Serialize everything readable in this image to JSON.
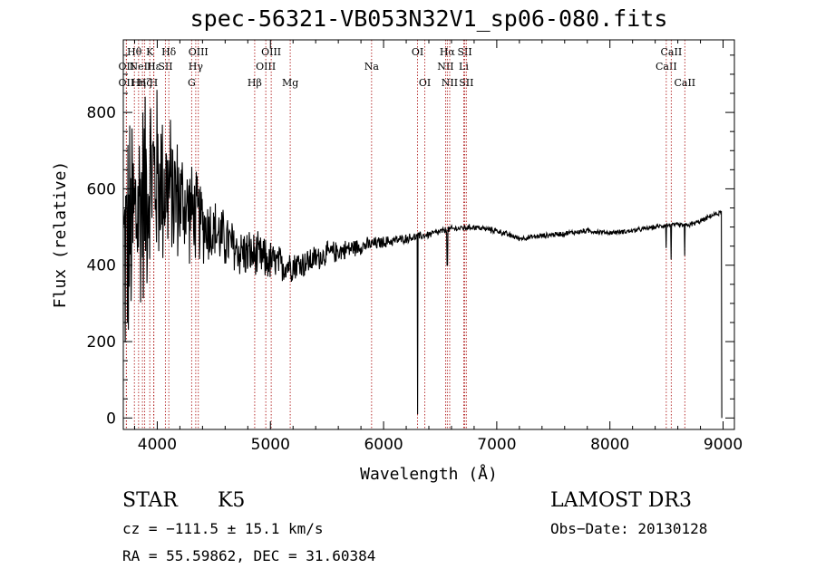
{
  "chart_data": {
    "type": "line",
    "title": "spec-56321-VB053N32V1_sp06-080.fits",
    "xlabel": "Wavelength (Å)",
    "ylabel": "Flux (relative)",
    "xlim": [
      3700,
      9100
    ],
    "ylim": [
      -30,
      990
    ],
    "xticks": [
      4000,
      5000,
      6000,
      7000,
      8000,
      9000
    ],
    "yticks": [
      0,
      200,
      400,
      600,
      800
    ],
    "spectrum_envelope": {
      "wavelength": [
        3700,
        3750,
        3800,
        3850,
        3900,
        3950,
        4000,
        4100,
        4200,
        4300,
        4400,
        4500,
        4700,
        4900,
        5100,
        5300,
        5500,
        5800,
        6000,
        6200,
        6400,
        6600,
        6800,
        7000,
        7200,
        7500,
        7800,
        8000,
        8200,
        8400,
        8500,
        8600,
        8700,
        8800,
        8900,
        9000
      ],
      "continuum": [
        420,
        460,
        520,
        560,
        600,
        640,
        630,
        600,
        570,
        540,
        510,
        490,
        440,
        420,
        400,
        405,
        430,
        450,
        460,
        470,
        480,
        495,
        500,
        490,
        470,
        480,
        490,
        485,
        490,
        500,
        505,
        505,
        505,
        515,
        530,
        540
      ],
      "noise_amplitude": [
        380,
        380,
        360,
        340,
        320,
        300,
        280,
        230,
        180,
        150,
        120,
        100,
        80,
        70,
        55,
        45,
        35,
        25,
        18,
        14,
        12,
        10,
        9,
        9,
        8,
        8,
        8,
        7,
        7,
        7,
        7,
        7,
        7,
        7,
        7,
        7
      ]
    },
    "absorption_features": [
      {
        "wavelength": 6300,
        "depth_to": 10
      },
      {
        "wavelength": 6563,
        "depth_to": 400
      },
      {
        "wavelength": 8498,
        "depth_to": 445
      },
      {
        "wavelength": 8542,
        "depth_to": 415
      },
      {
        "wavelength": 8662,
        "depth_to": 425
      },
      {
        "wavelength": 8990,
        "depth_to": 0
      }
    ],
    "lines": [
      {
        "wavelength": 3727,
        "label": "OII",
        "row": 2
      },
      {
        "wavelength": 3727,
        "label": "OII",
        "row": 3
      },
      {
        "wavelength": 3798,
        "label": "Hθ",
        "row": 1
      },
      {
        "wavelength": 3835,
        "label": "Hη",
        "row": 3
      },
      {
        "wavelength": 3869,
        "label": "NeIII",
        "row": 2
      },
      {
        "wavelength": 3889,
        "label": "Hζ",
        "row": 3
      },
      {
        "wavelength": 3934,
        "label": "K",
        "row": 1
      },
      {
        "wavelength": 3968,
        "label": "H",
        "row": 3
      },
      {
        "wavelength": 3970,
        "label": "Hε",
        "row": 2
      },
      {
        "wavelength": 4102,
        "label": "Hδ",
        "row": 1
      },
      {
        "wavelength": 4072,
        "label": "SII",
        "row": 2
      },
      {
        "wavelength": 4304,
        "label": "G",
        "row": 3
      },
      {
        "wavelength": 4340,
        "label": "Hγ",
        "row": 2
      },
      {
        "wavelength": 4363,
        "label": "OIII",
        "row": 1
      },
      {
        "wavelength": 4861,
        "label": "Hβ",
        "row": 3
      },
      {
        "wavelength": 4959,
        "label": "OIII",
        "row": 2
      },
      {
        "wavelength": 5007,
        "label": "OIII",
        "row": 1
      },
      {
        "wavelength": 5175,
        "label": "Mg",
        "row": 3
      },
      {
        "wavelength": 5894,
        "label": "Na",
        "row": 2
      },
      {
        "wavelength": 6300,
        "label": "OI",
        "row": 1
      },
      {
        "wavelength": 6364,
        "label": "OI",
        "row": 3
      },
      {
        "wavelength": 6548,
        "label": "NII",
        "row": 2
      },
      {
        "wavelength": 6563,
        "label": "Hα",
        "row": 1
      },
      {
        "wavelength": 6584,
        "label": "NII",
        "row": 3
      },
      {
        "wavelength": 6717,
        "label": "SII",
        "row": 1
      },
      {
        "wavelength": 6708,
        "label": "Li",
        "row": 2
      },
      {
        "wavelength": 6731,
        "label": "SII",
        "row": 3
      },
      {
        "wavelength": 8498,
        "label": "CaII",
        "row": 2
      },
      {
        "wavelength": 8542,
        "label": "CaII",
        "row": 1
      },
      {
        "wavelength": 8662,
        "label": "CaII",
        "row": 3
      }
    ],
    "line_color": "#b22222",
    "spectrum_color": "#000000"
  },
  "info": {
    "object_class": "STAR",
    "subclass": "K5",
    "survey": "LAMOST DR3",
    "cz": "cz = −111.5 ± 15.1 km/s",
    "obs_date": "Obs−Date: 20130128",
    "coords": "RA =  55.59862, DEC =  31.60384"
  }
}
